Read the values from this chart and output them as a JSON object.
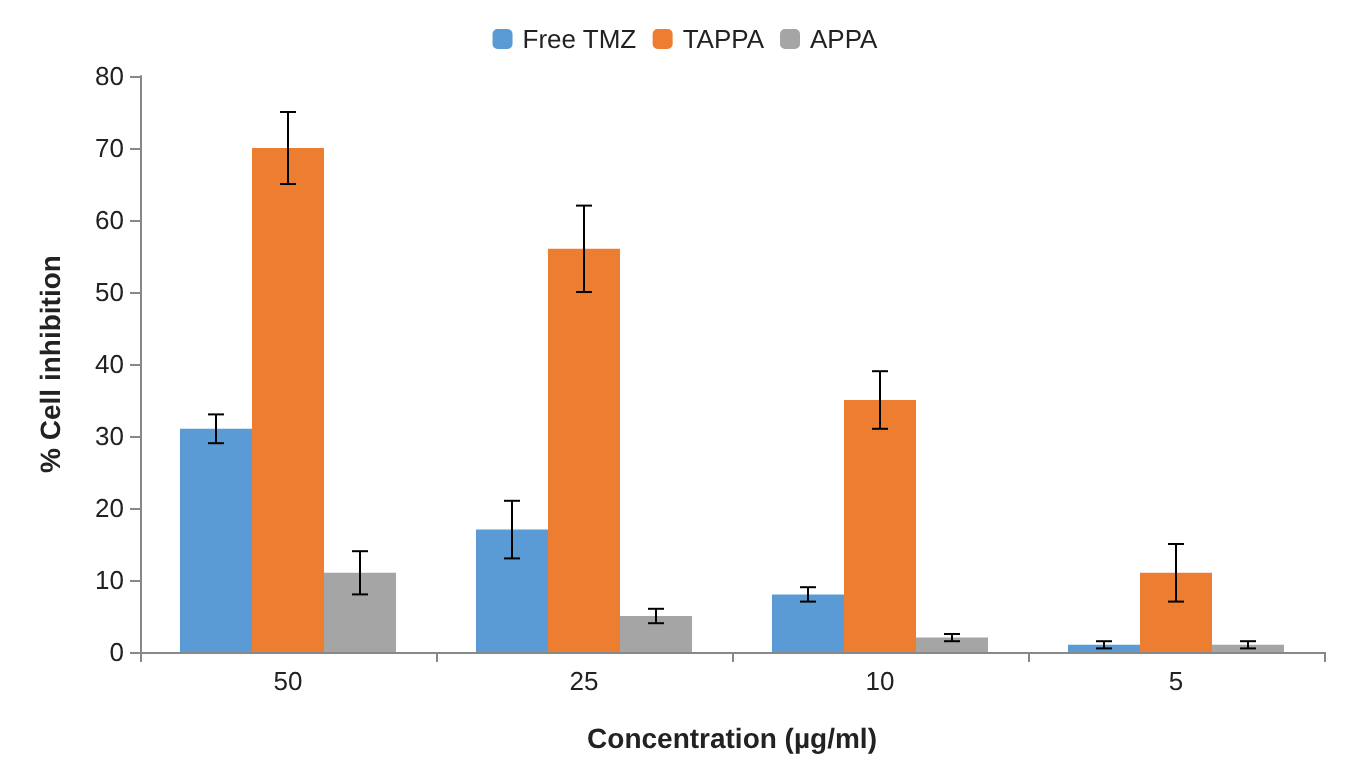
{
  "chart_data": {
    "type": "bar",
    "xlabel": "Concentration (µg/ml)",
    "ylabel": "% Cell inhibition",
    "categories": [
      "50",
      "25",
      "10",
      "5"
    ],
    "series": [
      {
        "name": "Free TMZ",
        "color": "#5b9bd5",
        "values": [
          31,
          17,
          8,
          1
        ],
        "errors": [
          2,
          4,
          1,
          0.5
        ]
      },
      {
        "name": "TAPPA",
        "color": "#ed7d31",
        "values": [
          70,
          56,
          35,
          11
        ],
        "errors": [
          5,
          6,
          4,
          4
        ]
      },
      {
        "name": "APPA",
        "color": "#a5a5a5",
        "values": [
          11,
          5,
          2,
          1
        ],
        "errors": [
          3,
          1,
          0.5,
          0.5
        ]
      }
    ],
    "ylim": [
      0,
      80
    ],
    "yticks": [
      0,
      10,
      20,
      30,
      40,
      50,
      60,
      70,
      80
    ],
    "grid": false,
    "legend": "top"
  }
}
